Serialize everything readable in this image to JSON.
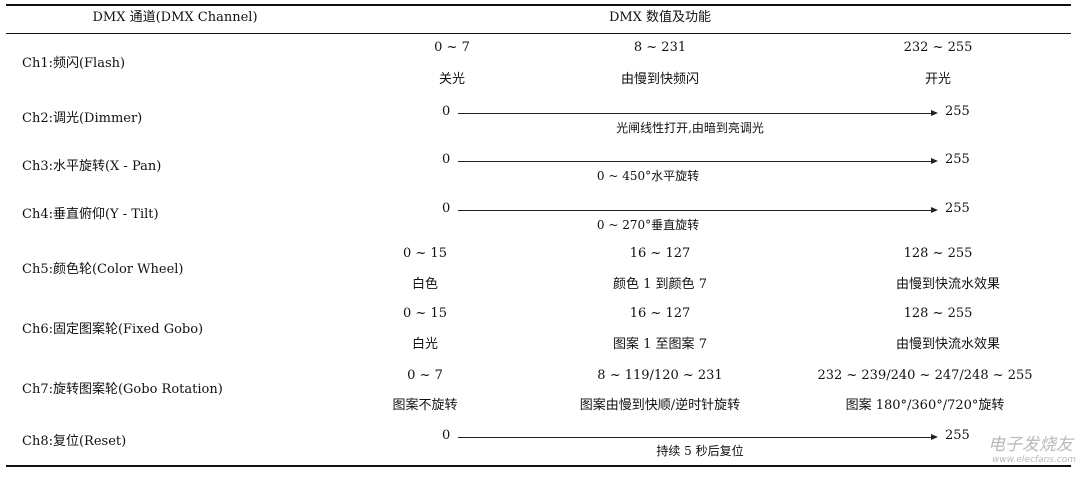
{
  "header": {
    "channel": "DMX 通道(DMX Channel)",
    "values": "DMX 数值及功能"
  },
  "rows": [
    {
      "label": "Ch1:频闪(Flash)",
      "type": "ranges",
      "ranges": [
        "0 ~ 7",
        "8 ~ 231",
        "232 ~ 255"
      ],
      "functions": [
        "关光",
        "由慢到快频闪",
        "开光"
      ]
    },
    {
      "label": "Ch2:调光(Dimmer)",
      "type": "linear",
      "start": "0",
      "end": "255",
      "function": "光闸线性打开,由暗到亮调光"
    },
    {
      "label": "Ch3:水平旋转(X - Pan)",
      "type": "linear",
      "start": "0",
      "end": "255",
      "function": "0 ~ 450°水平旋转"
    },
    {
      "label": "Ch4:垂直俯仰(Y - Tilt)",
      "type": "linear",
      "start": "0",
      "end": "255",
      "function": "0 ~ 270°垂直旋转"
    },
    {
      "label": "Ch5:颜色轮(Color Wheel)",
      "type": "ranges",
      "ranges": [
        "0 ~ 15",
        "16 ~ 127",
        "128 ~ 255"
      ],
      "functions": [
        "白色",
        "颜色 1 到颜色 7",
        "由慢到快流水效果"
      ]
    },
    {
      "label": "Ch6:固定图案轮(Fixed Gobo)",
      "type": "ranges",
      "ranges": [
        "0 ~ 15",
        "16 ~ 127",
        "128 ~ 255"
      ],
      "functions": [
        "白光",
        "图案 1 至图案 7",
        "由慢到快流水效果"
      ]
    },
    {
      "label": "Ch7:旋转图案轮(Gobo Rotation)",
      "type": "ranges",
      "ranges": [
        "0 ~ 7",
        "8 ~ 119/120 ~ 231",
        "232 ~ 239/240 ~ 247/248 ~ 255"
      ],
      "functions": [
        "图案不旋转",
        "图案由慢到快顺/逆时针旋转",
        "图案 180°/360°/720°旋转"
      ]
    },
    {
      "label": "Ch8:复位(Reset)",
      "type": "linear",
      "start": "0",
      "end": "255",
      "function": "持续 5 秒后复位"
    }
  ],
  "watermark": {
    "name": "电子发烧友",
    "url": "www.elecfans.com"
  }
}
